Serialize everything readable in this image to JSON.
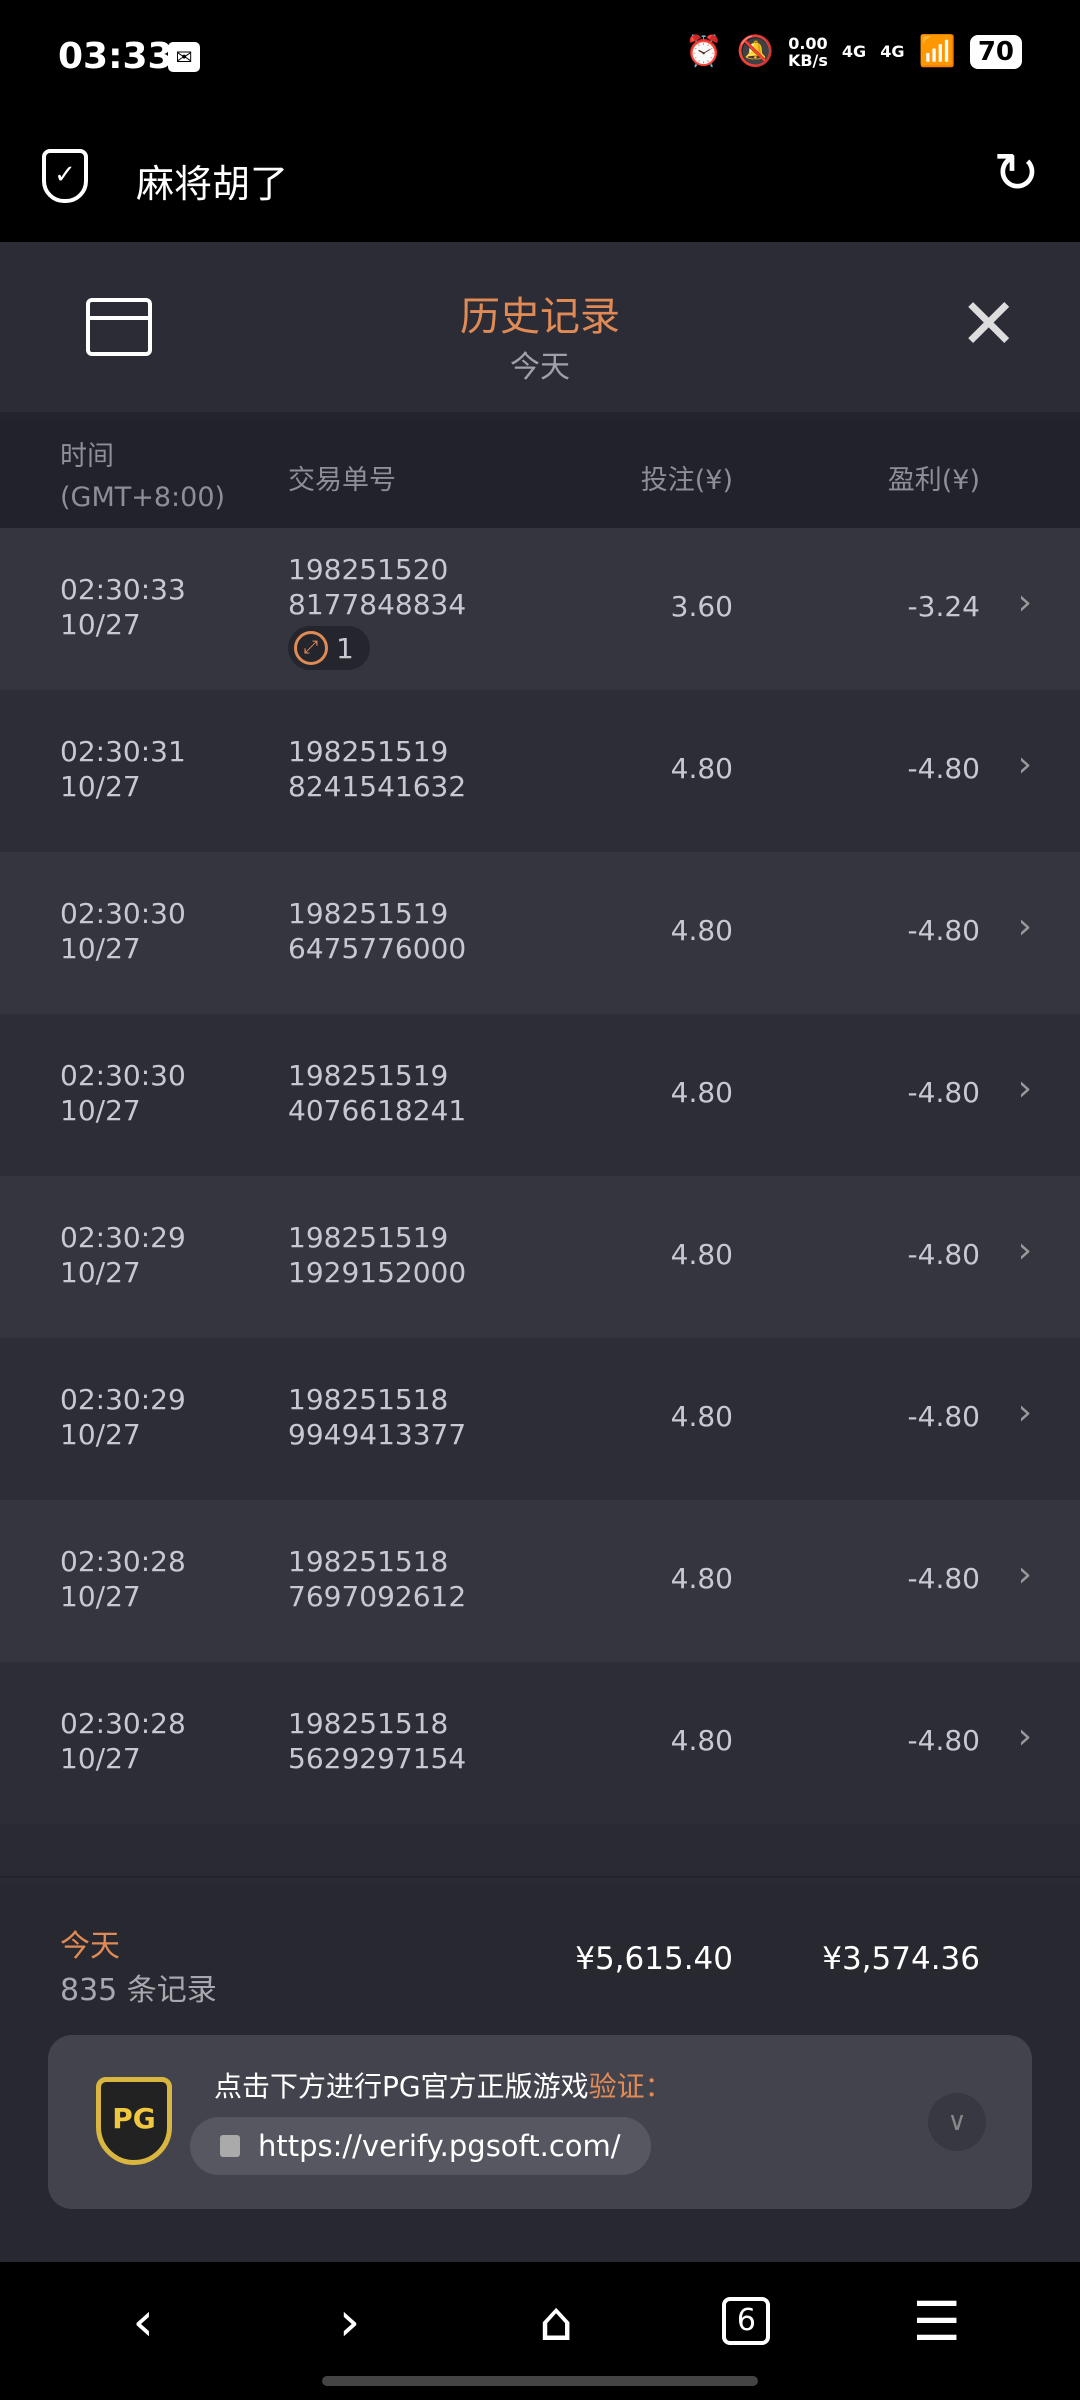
{
  "status": {
    "time": "03:33",
    "speed_value": "0.00",
    "speed_unit": "KB/s",
    "net1": "4G",
    "net2": "4G",
    "battery": "70"
  },
  "appbar": {
    "title": "麻将胡了"
  },
  "header": {
    "title": "历史记录",
    "subtitle": "今天"
  },
  "table": {
    "columns": {
      "time": "时间",
      "timezone": "(GMT+8:00)",
      "order": "交易单号",
      "bet": "投注(¥)",
      "profit": "盈利(¥)"
    },
    "rows": [
      {
        "time": "02:30:33",
        "date": "10/27",
        "id1": "198251520",
        "id2": "8177848834",
        "bet": "3.60",
        "profit": "-3.24",
        "badge": "1"
      },
      {
        "time": "02:30:31",
        "date": "10/27",
        "id1": "198251519",
        "id2": "8241541632",
        "bet": "4.80",
        "profit": "-4.80"
      },
      {
        "time": "02:30:30",
        "date": "10/27",
        "id1": "198251519",
        "id2": "6475776000",
        "bet": "4.80",
        "profit": "-4.80"
      },
      {
        "time": "02:30:30",
        "date": "10/27",
        "id1": "198251519",
        "id2": "4076618241",
        "bet": "4.80",
        "profit": "-4.80"
      },
      {
        "time": "02:30:29",
        "date": "10/27",
        "id1": "198251519",
        "id2": "1929152000",
        "bet": "4.80",
        "profit": "-4.80"
      },
      {
        "time": "02:30:29",
        "date": "10/27",
        "id1": "198251518",
        "id2": "9949413377",
        "bet": "4.80",
        "profit": "-4.80"
      },
      {
        "time": "02:30:28",
        "date": "10/27",
        "id1": "198251518",
        "id2": "7697092612",
        "bet": "4.80",
        "profit": "-4.80"
      },
      {
        "time": "02:30:28",
        "date": "10/27",
        "id1": "198251518",
        "id2": "5629297154",
        "bet": "4.80",
        "profit": "-4.80"
      }
    ]
  },
  "summary": {
    "period": "今天",
    "count": "835 条记录",
    "total_bet": "¥5,615.40",
    "total_profit": "¥3,574.36"
  },
  "verify": {
    "text": "点击下方进行PG官方正版游戏",
    "highlight": "验证：",
    "url": "https://verify.pgsoft.com/",
    "logo": "PG"
  },
  "nav": {
    "tabs_count": "6"
  },
  "colors": {
    "accent": "#e08a55",
    "panel": "#2a2a33"
  }
}
